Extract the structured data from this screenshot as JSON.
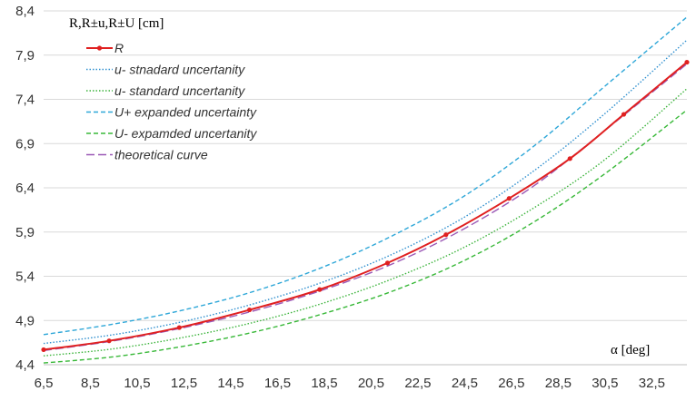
{
  "chart_data": {
    "type": "line",
    "title": "",
    "ylabel": "R,R±u,R±U [cm]",
    "xlabel": "α [deg]",
    "xlim": [
      6.5,
      34.0
    ],
    "ylim": [
      4.4,
      8.4
    ],
    "x_ticks": [
      "6,5",
      "8,5",
      "10,5",
      "12,5",
      "14,5",
      "16,5",
      "18,5",
      "20,5",
      "22,5",
      "24,5",
      "26,5",
      "28,5",
      "30,5",
      "32,5"
    ],
    "y_ticks": [
      "4,4",
      "4,9",
      "5,4",
      "5,9",
      "6,4",
      "6,9",
      "7,4",
      "7,9",
      "8,4"
    ],
    "grid": "horizontal",
    "legend_position": "top-left",
    "measured_x": [
      6.5,
      9.3,
      12.3,
      15.3,
      18.3,
      21.2,
      23.7,
      26.4,
      29.0,
      31.3,
      34.0
    ],
    "series": [
      {
        "name": "R",
        "color": "#e02020",
        "style": "solid-marker",
        "points": "measured",
        "values": [
          4.57,
          4.67,
          4.82,
          5.02,
          5.25,
          5.55,
          5.87,
          6.28,
          6.73,
          7.23,
          7.82
        ]
      },
      {
        "name": "u- stnadard uncertanity",
        "color": "#2e8fcf",
        "style": "dotted",
        "x": [
          6.5,
          9.5,
          12.5,
          15.5,
          18.5,
          21.5,
          24.5,
          27.5,
          30.5,
          34.0
        ],
        "values": [
          4.64,
          4.74,
          4.89,
          5.09,
          5.34,
          5.66,
          6.07,
          6.6,
          7.24,
          8.07
        ]
      },
      {
        "name": "u- standard uncertanity",
        "color": "#3cb43c",
        "style": "dotted",
        "x": [
          6.5,
          9.5,
          12.5,
          15.5,
          18.5,
          21.5,
          24.5,
          27.5,
          30.5,
          34.0
        ],
        "values": [
          4.5,
          4.58,
          4.71,
          4.88,
          5.1,
          5.38,
          5.73,
          6.18,
          6.72,
          7.52
        ]
      },
      {
        "name": "U+ expanded  uncertainty",
        "color": "#2ea7d8",
        "style": "dashed",
        "x": [
          6.5,
          9.5,
          12.5,
          15.5,
          18.5,
          21.5,
          24.5,
          27.5,
          30.5,
          34.0
        ],
        "values": [
          4.74,
          4.86,
          5.02,
          5.23,
          5.51,
          5.87,
          6.31,
          6.88,
          7.55,
          8.33
        ]
      },
      {
        "name": "U- expamded uncertanity",
        "color": "#38b838",
        "style": "dashed",
        "x": [
          6.5,
          9.5,
          12.5,
          15.5,
          18.5,
          21.5,
          24.5,
          27.5,
          30.5,
          34.0
        ],
        "values": [
          4.42,
          4.49,
          4.61,
          4.77,
          4.98,
          5.24,
          5.58,
          6.02,
          6.56,
          7.28
        ]
      },
      {
        "name": "theoretical curve",
        "color": "#9b59b6",
        "style": "long-dash",
        "x": [
          6.5,
          9.5,
          12.5,
          15.5,
          18.5,
          21.5,
          24.5,
          27.5,
          30.5,
          34.0
        ],
        "values": [
          4.56,
          4.67,
          4.82,
          5.01,
          5.25,
          5.55,
          5.94,
          6.43,
          7.05,
          7.8
        ]
      }
    ]
  }
}
